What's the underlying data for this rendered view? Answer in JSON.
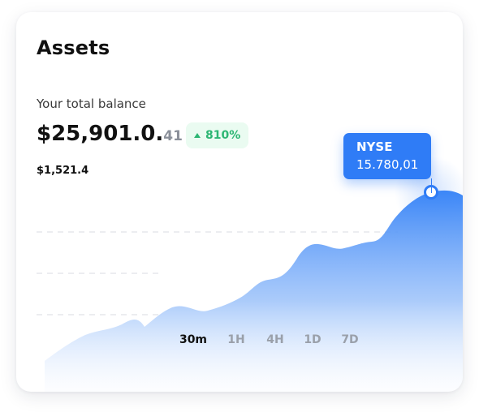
{
  "card": {
    "title": "Assets",
    "balance_label": "Your total balance",
    "balance_main": "$25,901.0.",
    "balance_cents": "41",
    "change_badge": "810%",
    "sub_balance": "$1,521.4"
  },
  "tooltip": {
    "label": "NYSE",
    "value": "15.780,01"
  },
  "timeframes": [
    {
      "label": "30m",
      "active": true
    },
    {
      "label": "1H",
      "active": false
    },
    {
      "label": "4H",
      "active": false
    },
    {
      "label": "1D",
      "active": false
    },
    {
      "label": "7D",
      "active": false
    }
  ],
  "colors": {
    "accent": "#2f7cf6",
    "positive": "#2cb673",
    "positive_bg": "#eafbf1"
  }
}
